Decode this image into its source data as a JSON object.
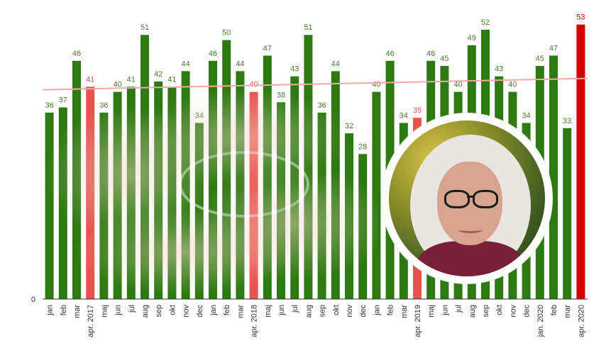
{
  "chart_data": {
    "type": "bar",
    "categories": [
      "jan",
      "feb",
      "mar",
      "apr. 2017",
      "maj",
      "jun",
      "jul",
      "aug",
      "sep",
      "okt",
      "nov",
      "dec",
      "jan",
      "feb",
      "mar",
      "apr. 2018",
      "maj",
      "jun",
      "jul",
      "aug",
      "sep",
      "okt",
      "nov",
      "dec",
      "jan",
      "feb",
      "mar",
      "apr. 2019",
      "maj",
      "jun",
      "jul",
      "aug",
      "sep",
      "okt",
      "nov",
      "dec",
      "jan. 2020",
      "feb",
      "mar",
      "apr. 2020"
    ],
    "values": [
      36,
      37,
      46,
      41,
      36,
      40,
      41,
      51,
      42,
      41,
      44,
      34,
      46,
      50,
      44,
      40,
      47,
      38,
      43,
      51,
      36,
      44,
      32,
      28,
      40,
      46,
      34,
      35,
      46,
      45,
      40,
      49,
      52,
      43,
      40,
      34,
      45,
      47,
      33,
      53
    ],
    "highlight_indices": [
      3,
      15,
      27,
      39
    ],
    "ylim": [
      0,
      55
    ],
    "y_tick_labels": [
      "0"
    ],
    "trend_line": {
      "start": 40.4,
      "end": 42.6
    },
    "colors": {
      "bar": "#2e7a12",
      "highlight_bar": "#e9534f",
      "latest_bar": "#d60000",
      "value_label": "#4a7d2e",
      "highlight_label": "#e9534f",
      "trend": "#f1a8a8",
      "axis": "#333333"
    },
    "grid": false
  },
  "images": {
    "background_photo": "hands-with-ring-photo",
    "portrait": "woman-with-white-hair-portrait"
  }
}
